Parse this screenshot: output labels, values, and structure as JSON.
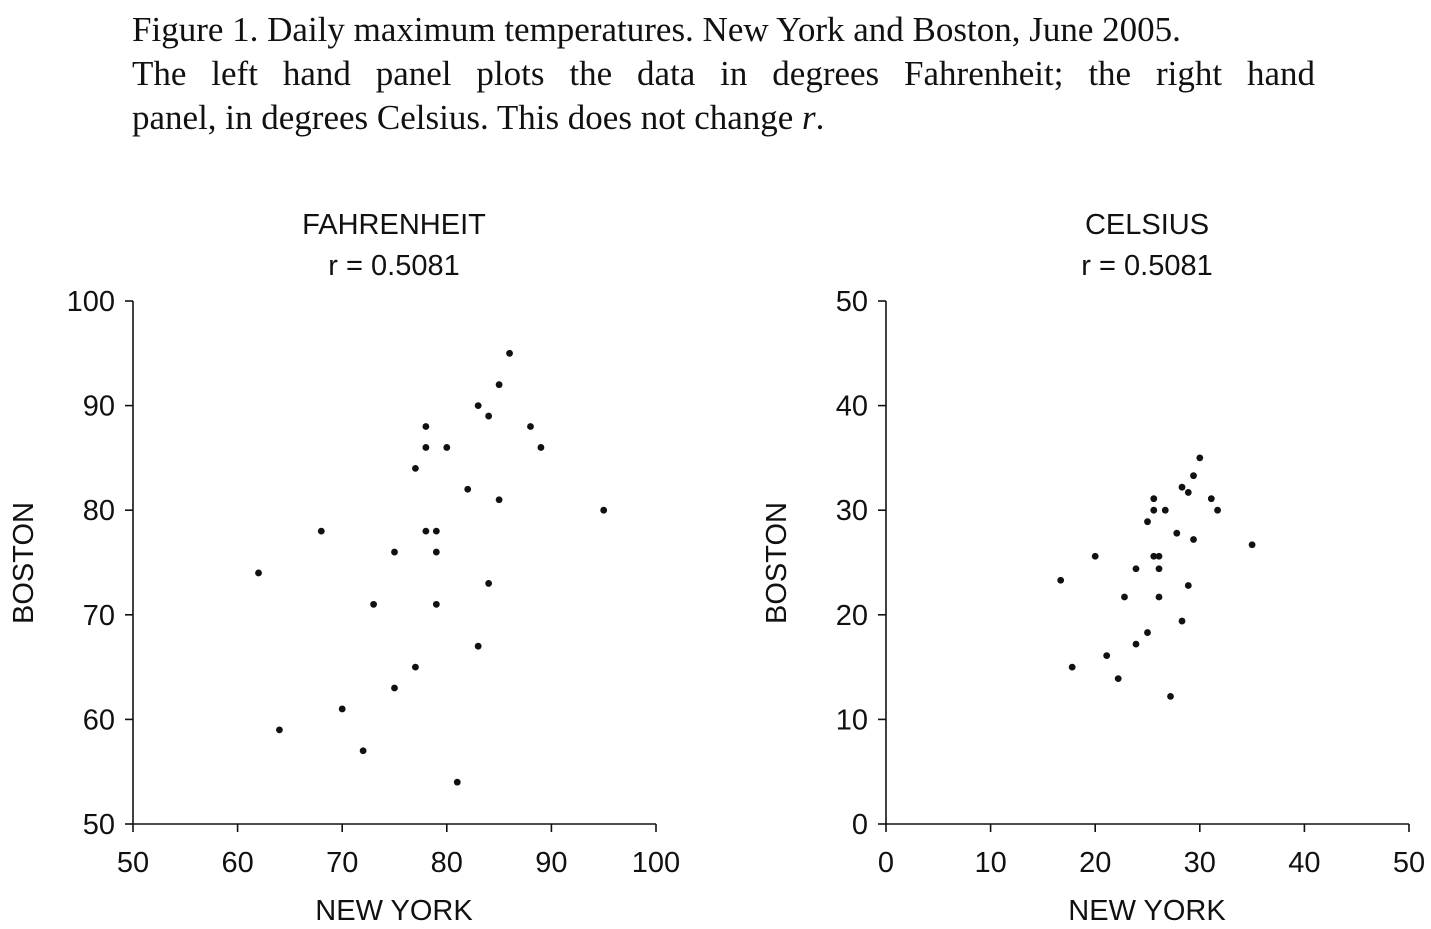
{
  "caption": {
    "line1": "Figure 1.  Daily maximum temperatures.  New York and Boston, June 2005.",
    "line2": "The left hand panel plots the data in degrees Fahrenheit; the right hand",
    "line3_prefix": "panel, in degrees Celsius. This does not change ",
    "line3_var": "r",
    "line3_suffix": "."
  },
  "chart_data": [
    {
      "type": "scatter",
      "title": "FAHRENHEIT",
      "subtitle": "r = 0.5081",
      "xlabel": "NEW YORK",
      "ylabel": "BOSTON",
      "xlim": [
        50,
        100
      ],
      "ylim": [
        50,
        100
      ],
      "xticks": [
        50,
        60,
        70,
        80,
        90,
        100
      ],
      "yticks": [
        50,
        60,
        70,
        80,
        90,
        100
      ],
      "grid": false,
      "points": [
        [
          62,
          74
        ],
        [
          64,
          59
        ],
        [
          68,
          78
        ],
        [
          70,
          61
        ],
        [
          72,
          57
        ],
        [
          73,
          71
        ],
        [
          75,
          76
        ],
        [
          75,
          63
        ],
        [
          77,
          84
        ],
        [
          77,
          65
        ],
        [
          78,
          88
        ],
        [
          78,
          86
        ],
        [
          78,
          78
        ],
        [
          79,
          78
        ],
        [
          79,
          76
        ],
        [
          79,
          71
        ],
        [
          80,
          86
        ],
        [
          81,
          54
        ],
        [
          82,
          82
        ],
        [
          83,
          90
        ],
        [
          83,
          67
        ],
        [
          84,
          89
        ],
        [
          84,
          73
        ],
        [
          85,
          92
        ],
        [
          85,
          81
        ],
        [
          86,
          95
        ],
        [
          88,
          88
        ],
        [
          89,
          86
        ],
        [
          95,
          80
        ]
      ]
    },
    {
      "type": "scatter",
      "title": "CELSIUS",
      "subtitle": "r = 0.5081",
      "xlabel": "NEW YORK",
      "ylabel": "BOSTON",
      "xlim": [
        0,
        50
      ],
      "ylim": [
        0,
        50
      ],
      "xticks": [
        0,
        10,
        20,
        30,
        40,
        50
      ],
      "yticks": [
        0,
        10,
        20,
        30,
        40,
        50
      ],
      "grid": false,
      "points": [
        [
          16.7,
          23.3
        ],
        [
          17.8,
          15.0
        ],
        [
          20.0,
          25.6
        ],
        [
          21.1,
          16.1
        ],
        [
          22.2,
          13.9
        ],
        [
          22.8,
          21.7
        ],
        [
          23.9,
          24.4
        ],
        [
          23.9,
          17.2
        ],
        [
          25.0,
          28.9
        ],
        [
          25.0,
          18.3
        ],
        [
          25.6,
          31.1
        ],
        [
          25.6,
          30.0
        ],
        [
          25.6,
          25.6
        ],
        [
          26.1,
          25.6
        ],
        [
          26.1,
          24.4
        ],
        [
          26.1,
          21.7
        ],
        [
          26.7,
          30.0
        ],
        [
          27.2,
          12.2
        ],
        [
          27.8,
          27.8
        ],
        [
          28.3,
          32.2
        ],
        [
          28.3,
          19.4
        ],
        [
          28.9,
          31.7
        ],
        [
          28.9,
          22.8
        ],
        [
          29.4,
          33.3
        ],
        [
          29.4,
          27.2
        ],
        [
          30.0,
          35.0
        ],
        [
          31.1,
          31.1
        ],
        [
          31.7,
          30.0
        ],
        [
          35.0,
          26.7
        ]
      ]
    }
  ]
}
